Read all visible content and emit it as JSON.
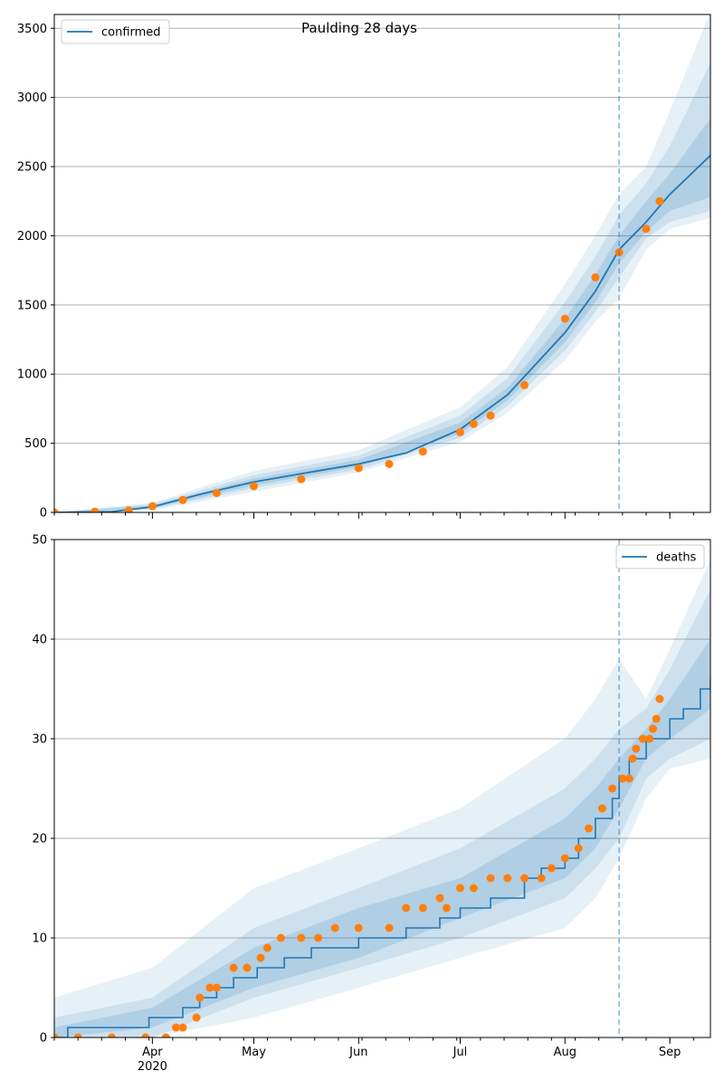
{
  "figure": {
    "title": "Paulding 28 days"
  },
  "chart_data": [
    {
      "type": "line",
      "name": "confirmed-panel",
      "legend": {
        "label": "confirmed",
        "position": "top-left"
      },
      "xlim": [
        "2020-03-03",
        "2020-09-13"
      ],
      "ylim": [
        0,
        3600
      ],
      "yticks": [
        0,
        500,
        1000,
        1500,
        2000,
        2500,
        3000,
        3500
      ],
      "grid": "y",
      "forecast_start": "2020-08-17",
      "colors": {
        "line": "#1f77b4",
        "observed": "#ff7f0e",
        "band": "#1f77b4",
        "vline": "#1f77b4"
      },
      "model_curve": {
        "x": [
          "2020-03-03",
          "2020-03-20",
          "2020-04-01",
          "2020-04-15",
          "2020-05-01",
          "2020-05-15",
          "2020-06-01",
          "2020-06-15",
          "2020-07-01",
          "2020-07-15",
          "2020-08-01",
          "2020-08-10",
          "2020-08-17",
          "2020-08-25",
          "2020-09-01",
          "2020-09-13"
        ],
        "y": [
          0,
          5,
          40,
          130,
          220,
          280,
          350,
          430,
          600,
          850,
          1300,
          1600,
          1900,
          2100,
          2300,
          2580
        ]
      },
      "bands": [
        {
          "x": [
            "2020-03-03",
            "2020-04-01",
            "2020-05-01",
            "2020-06-01",
            "2020-07-01",
            "2020-07-15",
            "2020-08-01",
            "2020-08-10",
            "2020-08-17",
            "2020-08-25",
            "2020-09-01",
            "2020-09-13"
          ],
          "lower": [
            0,
            15,
            150,
            290,
            510,
            720,
            1100,
            1380,
            1550,
            1900,
            2050,
            2130
          ],
          "upper": [
            0,
            70,
            300,
            450,
            760,
            1050,
            1650,
            2000,
            2300,
            2500,
            2900,
            3620
          ]
        },
        {
          "x": [
            "2020-03-03",
            "2020-04-01",
            "2020-05-01",
            "2020-06-01",
            "2020-07-01",
            "2020-07-15",
            "2020-08-01",
            "2020-08-10",
            "2020-08-17",
            "2020-08-25",
            "2020-09-01",
            "2020-09-13"
          ],
          "lower": [
            0,
            25,
            175,
            310,
            540,
            770,
            1170,
            1450,
            1700,
            1980,
            2100,
            2180
          ],
          "upper": [
            0,
            60,
            270,
            410,
            700,
            970,
            1520,
            1850,
            2150,
            2380,
            2650,
            3250
          ]
        },
        {
          "x": [
            "2020-03-03",
            "2020-04-01",
            "2020-05-01",
            "2020-06-01",
            "2020-07-01",
            "2020-07-15",
            "2020-08-01",
            "2020-08-10",
            "2020-08-17",
            "2020-08-25",
            "2020-09-01",
            "2020-09-13"
          ],
          "lower": [
            0,
            32,
            195,
            330,
            570,
            810,
            1230,
            1520,
            1800,
            2030,
            2180,
            2280
          ],
          "upper": [
            0,
            50,
            245,
            380,
            650,
            900,
            1400,
            1720,
            2000,
            2250,
            2450,
            2850
          ]
        }
      ],
      "observed": {
        "x": [
          "2020-03-03",
          "2020-03-15",
          "2020-03-25",
          "2020-04-01",
          "2020-04-10",
          "2020-04-20",
          "2020-05-01",
          "2020-05-15",
          "2020-06-01",
          "2020-06-10",
          "2020-06-20",
          "2020-07-01",
          "2020-07-05",
          "2020-07-10",
          "2020-07-20",
          "2020-08-01",
          "2020-08-10",
          "2020-08-17",
          "2020-08-25",
          "2020-08-29"
        ],
        "y": [
          0,
          5,
          15,
          45,
          90,
          140,
          190,
          240,
          320,
          350,
          440,
          580,
          640,
          700,
          920,
          1400,
          1700,
          1880,
          2050,
          2250
        ]
      }
    },
    {
      "type": "line",
      "name": "deaths-panel",
      "legend": {
        "label": "deaths",
        "position": "top-right"
      },
      "xlim": [
        "2020-03-03",
        "2020-09-13"
      ],
      "ylim": [
        0,
        50
      ],
      "yticks": [
        0,
        10,
        20,
        30,
        40,
        50
      ],
      "xticks": [
        {
          "date": "2020-04-01",
          "label": "Apr",
          "sub": "2020"
        },
        {
          "date": "2020-05-01",
          "label": "May",
          "sub": ""
        },
        {
          "date": "2020-06-01",
          "label": "Jun",
          "sub": ""
        },
        {
          "date": "2020-07-01",
          "label": "Jul",
          "sub": ""
        },
        {
          "date": "2020-08-01",
          "label": "Aug",
          "sub": ""
        },
        {
          "date": "2020-09-01",
          "label": "Sep",
          "sub": ""
        }
      ],
      "grid": "y",
      "forecast_start": "2020-08-17",
      "colors": {
        "line": "#1f77b4",
        "observed": "#ff7f0e",
        "band": "#1f77b4",
        "vline": "#1f77b4"
      },
      "model_step": {
        "x": [
          "2020-03-03",
          "2020-03-07",
          "2020-03-31",
          "2020-04-10",
          "2020-04-15",
          "2020-04-20",
          "2020-04-25",
          "2020-05-02",
          "2020-05-10",
          "2020-05-18",
          "2020-06-01",
          "2020-06-15",
          "2020-06-25",
          "2020-07-01",
          "2020-07-10",
          "2020-07-20",
          "2020-07-25",
          "2020-08-01",
          "2020-08-05",
          "2020-08-10",
          "2020-08-15",
          "2020-08-17",
          "2020-08-20",
          "2020-08-25",
          "2020-09-01",
          "2020-09-05",
          "2020-09-10",
          "2020-09-13"
        ],
        "y": [
          0,
          1,
          2,
          3,
          4,
          5,
          6,
          7,
          8,
          9,
          10,
          11,
          12,
          13,
          14,
          16,
          17,
          18,
          20,
          22,
          24,
          26,
          28,
          30,
          32,
          33,
          35,
          36
        ]
      },
      "bands": [
        {
          "x": [
            "2020-03-03",
            "2020-04-01",
            "2020-05-01",
            "2020-06-01",
            "2020-07-01",
            "2020-08-01",
            "2020-08-10",
            "2020-08-17",
            "2020-08-25",
            "2020-09-01",
            "2020-09-13"
          ],
          "lower": [
            0,
            0,
            2,
            5,
            8,
            11,
            14,
            18,
            24,
            27,
            28
          ],
          "upper": [
            4,
            7,
            15,
            19,
            23,
            30,
            34,
            38,
            34,
            39,
            48
          ]
        },
        {
          "x": [
            "2020-03-03",
            "2020-04-01",
            "2020-05-01",
            "2020-06-01",
            "2020-07-01",
            "2020-08-01",
            "2020-08-10",
            "2020-08-17",
            "2020-08-25",
            "2020-09-01",
            "2020-09-13"
          ],
          "lower": [
            0,
            0,
            4,
            7,
            10,
            14,
            17,
            20,
            26,
            28,
            30
          ],
          "upper": [
            2,
            4,
            11,
            15,
            19,
            25,
            28,
            31,
            33,
            37,
            45
          ]
        },
        {
          "x": [
            "2020-03-03",
            "2020-04-01",
            "2020-05-01",
            "2020-06-01",
            "2020-07-01",
            "2020-08-01",
            "2020-08-10",
            "2020-08-17",
            "2020-08-25",
            "2020-09-01",
            "2020-09-13"
          ],
          "lower": [
            0,
            1,
            5,
            8,
            12,
            16,
            19,
            23,
            28,
            30,
            33
          ],
          "upper": [
            1,
            3,
            9,
            13,
            16,
            22,
            25,
            28,
            31,
            34,
            40
          ]
        }
      ],
      "observed": {
        "x": [
          "2020-03-03",
          "2020-03-10",
          "2020-03-20",
          "2020-03-30",
          "2020-04-05",
          "2020-04-08",
          "2020-04-10",
          "2020-04-14",
          "2020-04-15",
          "2020-04-18",
          "2020-04-20",
          "2020-04-25",
          "2020-04-29",
          "2020-05-03",
          "2020-05-05",
          "2020-05-09",
          "2020-05-15",
          "2020-05-20",
          "2020-05-25",
          "2020-06-01",
          "2020-06-10",
          "2020-06-15",
          "2020-06-20",
          "2020-06-25",
          "2020-06-27",
          "2020-07-01",
          "2020-07-05",
          "2020-07-10",
          "2020-07-15",
          "2020-07-20",
          "2020-07-25",
          "2020-07-28",
          "2020-08-01",
          "2020-08-05",
          "2020-08-08",
          "2020-08-12",
          "2020-08-15",
          "2020-08-18",
          "2020-08-20",
          "2020-08-21",
          "2020-08-22",
          "2020-08-24",
          "2020-08-26",
          "2020-08-27",
          "2020-08-28",
          "2020-08-29"
        ],
        "y": [
          0,
          0,
          0,
          0,
          0,
          1,
          1,
          2,
          4,
          5,
          5,
          7,
          7,
          8,
          9,
          10,
          10,
          10,
          11,
          11,
          11,
          13,
          13,
          14,
          13,
          15,
          15,
          16,
          16,
          16,
          16,
          17,
          18,
          19,
          21,
          23,
          25,
          26,
          26,
          28,
          29,
          30,
          30,
          31,
          32,
          34
        ]
      }
    }
  ]
}
